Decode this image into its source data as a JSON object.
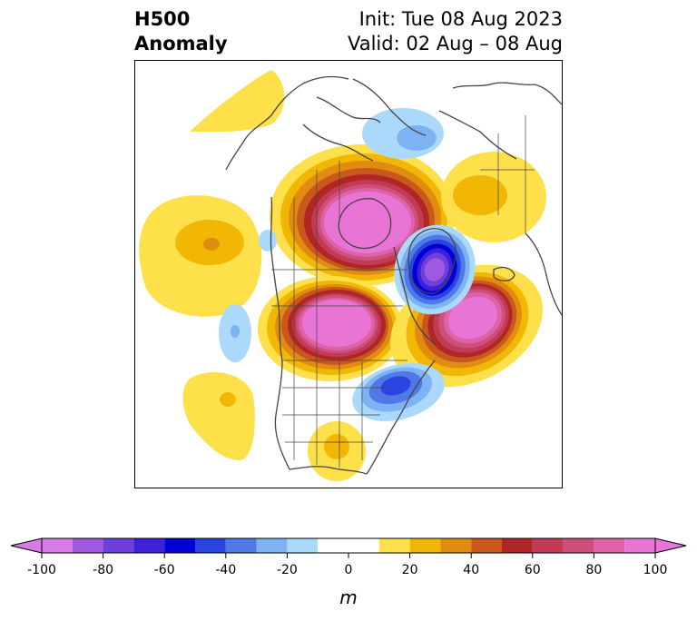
{
  "title": {
    "left_line1": "H500",
    "left_line2": "Anomaly",
    "right_line1": "Init: Tue 08 Aug 2023",
    "right_line2": "Valid: 02 Aug – 08 Aug"
  },
  "colorbar": {
    "unit": "m",
    "ticks": [
      "-100",
      "-80",
      "-60",
      "-40",
      "-20",
      "0",
      "20",
      "40",
      "60",
      "80",
      "100"
    ],
    "bins": [
      {
        "from": -100,
        "to": -90,
        "color": "#d77be6"
      },
      {
        "from": -90,
        "to": -80,
        "color": "#9f58e0"
      },
      {
        "from": -80,
        "to": -70,
        "color": "#6d3fdb"
      },
      {
        "from": -70,
        "to": -60,
        "color": "#3d21d9"
      },
      {
        "from": -60,
        "to": -50,
        "color": "#0000d6"
      },
      {
        "from": -50,
        "to": -40,
        "color": "#2a44e0"
      },
      {
        "from": -40,
        "to": -30,
        "color": "#5079e8"
      },
      {
        "from": -30,
        "to": -20,
        "color": "#7eb3f3"
      },
      {
        "from": -20,
        "to": -10,
        "color": "#abd9fb"
      },
      {
        "from": -10,
        "to": 10,
        "color": "#ffffff"
      },
      {
        "from": 10,
        "to": 20,
        "color": "#fde04a"
      },
      {
        "from": 20,
        "to": 30,
        "color": "#f2b705"
      },
      {
        "from": 30,
        "to": 40,
        "color": "#e08c10"
      },
      {
        "from": 40,
        "to": 50,
        "color": "#c8581c"
      },
      {
        "from": 50,
        "to": 60,
        "color": "#b02525"
      },
      {
        "from": 60,
        "to": 70,
        "color": "#c23b55"
      },
      {
        "from": 70,
        "to": 80,
        "color": "#cf4f7c"
      },
      {
        "from": 80,
        "to": 90,
        "color": "#dd62a8"
      },
      {
        "from": 90,
        "to": 100,
        "color": "#e874d6"
      }
    ],
    "extend_low_color": "#d77be6",
    "extend_high_color": "#e874d6"
  },
  "map": {
    "coastline_color": "#444444",
    "anomalies": [
      {
        "name": "hudson-bay-ridge",
        "sign": "positive",
        "peak": 95
      },
      {
        "name": "western-canada-ridge",
        "sign": "positive",
        "peak": 95
      },
      {
        "name": "north-atlantic-ridge",
        "sign": "positive",
        "peak": 95
      },
      {
        "name": "greenland-trough",
        "sign": "negative",
        "peak": -70
      },
      {
        "name": "northeast-us-trough",
        "sign": "negative",
        "peak": -40
      },
      {
        "name": "arctic-trough",
        "sign": "negative",
        "peak": -30
      },
      {
        "name": "north-pacific-ridge",
        "sign": "positive",
        "peak": 30
      },
      {
        "name": "east-pacific-ridge",
        "sign": "positive",
        "peak": 25
      },
      {
        "name": "pacific-trough",
        "sign": "negative",
        "peak": -30
      }
    ]
  }
}
